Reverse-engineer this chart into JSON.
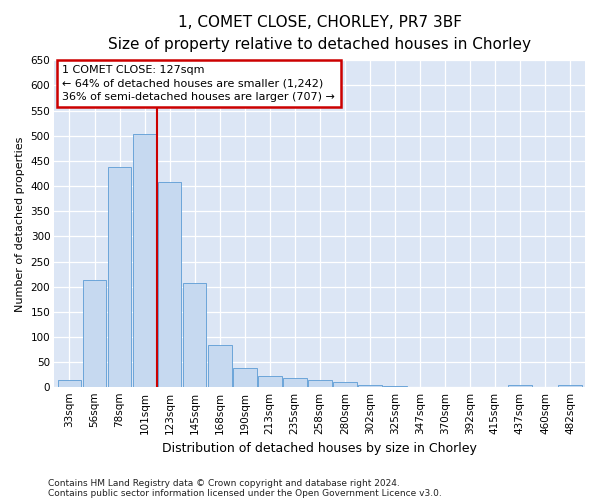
{
  "title1": "1, COMET CLOSE, CHORLEY, PR7 3BF",
  "title2": "Size of property relative to detached houses in Chorley",
  "xlabel": "Distribution of detached houses by size in Chorley",
  "ylabel": "Number of detached properties",
  "categories": [
    "33sqm",
    "56sqm",
    "78sqm",
    "101sqm",
    "123sqm",
    "145sqm",
    "168sqm",
    "190sqm",
    "213sqm",
    "235sqm",
    "258sqm",
    "280sqm",
    "302sqm",
    "325sqm",
    "347sqm",
    "370sqm",
    "392sqm",
    "415sqm",
    "437sqm",
    "460sqm",
    "482sqm"
  ],
  "values": [
    15,
    213,
    437,
    503,
    408,
    207,
    84,
    38,
    22,
    19,
    15,
    11,
    5,
    3,
    1,
    1,
    0,
    0,
    4,
    0,
    4
  ],
  "bar_color": "#c6d9f0",
  "bar_edge_color": "#5b9bd5",
  "vline_color": "#cc0000",
  "vline_x": 4.0,
  "annotation_title": "1 COMET CLOSE: 127sqm",
  "annotation_line1": "← 64% of detached houses are smaller (1,242)",
  "annotation_line2": "36% of semi-detached houses are larger (707) →",
  "annotation_box_facecolor": "#ffffff",
  "annotation_box_edgecolor": "#cc0000",
  "ylim": [
    0,
    650
  ],
  "yticks": [
    0,
    50,
    100,
    150,
    200,
    250,
    300,
    350,
    400,
    450,
    500,
    550,
    600,
    650
  ],
  "plot_bg_color": "#dce6f5",
  "fig_bg_color": "#ffffff",
  "footnote1": "Contains HM Land Registry data © Crown copyright and database right 2024.",
  "footnote2": "Contains public sector information licensed under the Open Government Licence v3.0.",
  "title1_fontsize": 11,
  "title2_fontsize": 9,
  "xlabel_fontsize": 9,
  "ylabel_fontsize": 8,
  "tick_fontsize": 7.5,
  "annot_fontsize": 8,
  "footnote_fontsize": 6.5
}
